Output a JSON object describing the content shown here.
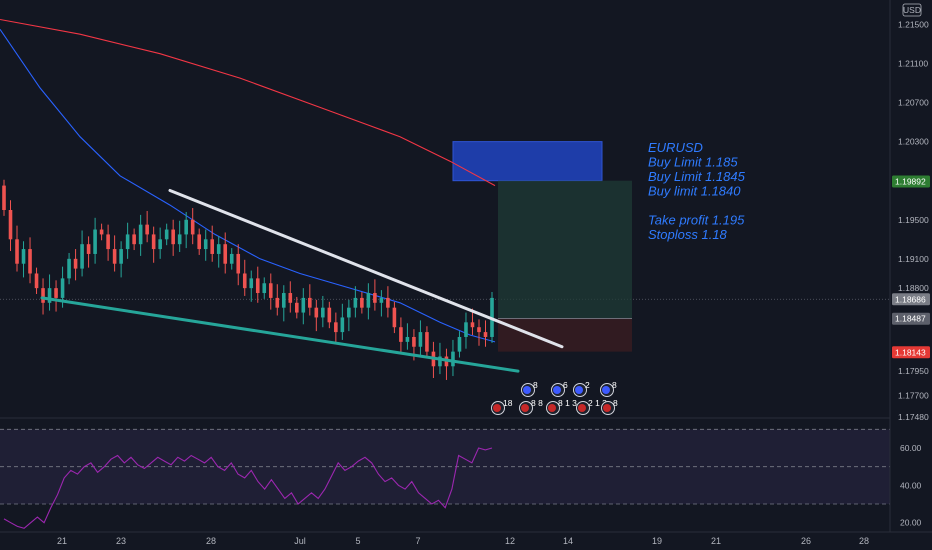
{
  "chart_data": {
    "type": "candlestick",
    "symbol": "EURUSD",
    "currency": "USD",
    "price_axis": {
      "range": [
        1.1745,
        1.2175
      ],
      "ticks": [
        "1.21500",
        "1.21100",
        "1.20700",
        "1.20300",
        "1.19500",
        "1.19100",
        "1.18800",
        "1.17950",
        "1.17700",
        "1.17480"
      ]
    },
    "price_labels": [
      {
        "value": 1.19892,
        "text": "1.19892",
        "color": "#2e7d32"
      },
      {
        "value": 1.18686,
        "text": "1.18686",
        "color": "#7a7d86"
      },
      {
        "value": 1.18487,
        "text": "1.18487",
        "color": "#5d606b"
      },
      {
        "value": 1.18143,
        "text": "1.18143",
        "color": "#e53935"
      }
    ],
    "current_price_line": 1.18686,
    "time_axis": {
      "ticks": [
        "21",
        "23",
        "28",
        "Jul",
        "5",
        "7",
        "12",
        "14",
        "19",
        "21",
        "26",
        "28"
      ]
    },
    "candles_o_c": [
      [
        1.1985,
        1.196
      ],
      [
        1.196,
        1.193
      ],
      [
        1.193,
        1.1905
      ],
      [
        1.1905,
        1.192
      ],
      [
        1.192,
        1.1895
      ],
      [
        1.1895,
        1.188
      ],
      [
        1.188,
        1.1865
      ],
      [
        1.1865,
        1.188
      ],
      [
        1.188,
        1.187
      ],
      [
        1.187,
        1.189
      ],
      [
        1.189,
        1.191
      ],
      [
        1.191,
        1.19
      ],
      [
        1.19,
        1.1925
      ],
      [
        1.1925,
        1.1915
      ],
      [
        1.1915,
        1.194
      ],
      [
        1.194,
        1.1935
      ],
      [
        1.1935,
        1.192
      ],
      [
        1.192,
        1.1905
      ],
      [
        1.1905,
        1.192
      ],
      [
        1.192,
        1.1935
      ],
      [
        1.1935,
        1.1925
      ],
      [
        1.1925,
        1.1945
      ],
      [
        1.1945,
        1.1935
      ],
      [
        1.1935,
        1.192
      ],
      [
        1.192,
        1.193
      ],
      [
        1.193,
        1.194
      ],
      [
        1.194,
        1.1925
      ],
      [
        1.1925,
        1.1935
      ],
      [
        1.1935,
        1.195
      ],
      [
        1.195,
        1.1935
      ],
      [
        1.1935,
        1.192
      ],
      [
        1.192,
        1.193
      ],
      [
        1.193,
        1.1915
      ],
      [
        1.1915,
        1.1925
      ],
      [
        1.1925,
        1.1905
      ],
      [
        1.1905,
        1.1915
      ],
      [
        1.1915,
        1.1895
      ],
      [
        1.1895,
        1.188
      ],
      [
        1.188,
        1.189
      ],
      [
        1.189,
        1.1875
      ],
      [
        1.1875,
        1.1885
      ],
      [
        1.1885,
        1.187
      ],
      [
        1.187,
        1.186
      ],
      [
        1.186,
        1.1875
      ],
      [
        1.1875,
        1.1865
      ],
      [
        1.1865,
        1.1855
      ],
      [
        1.1855,
        1.187
      ],
      [
        1.187,
        1.186
      ],
      [
        1.186,
        1.185
      ],
      [
        1.185,
        1.186
      ],
      [
        1.186,
        1.1845
      ],
      [
        1.1845,
        1.1835
      ],
      [
        1.1835,
        1.185
      ],
      [
        1.185,
        1.186
      ],
      [
        1.186,
        1.187
      ],
      [
        1.187,
        1.186
      ],
      [
        1.186,
        1.1875
      ],
      [
        1.1875,
        1.1865
      ],
      [
        1.1865,
        1.187
      ],
      [
        1.187,
        1.186
      ],
      [
        1.186,
        1.184
      ],
      [
        1.184,
        1.1825
      ],
      [
        1.1825,
        1.183
      ],
      [
        1.183,
        1.182
      ],
      [
        1.182,
        1.1835
      ],
      [
        1.1835,
        1.1815
      ],
      [
        1.1815,
        1.18
      ],
      [
        1.18,
        1.181
      ],
      [
        1.181,
        1.18
      ],
      [
        1.18,
        1.1815
      ],
      [
        1.1815,
        1.183
      ],
      [
        1.183,
        1.1845
      ],
      [
        1.1845,
        1.184
      ],
      [
        1.184,
        1.1835
      ],
      [
        1.1835,
        1.183
      ],
      [
        1.183,
        1.187
      ]
    ],
    "moving_averages": [
      {
        "color": "#f23645",
        "points": [
          [
            0,
            1.2155
          ],
          [
            80,
            1.214
          ],
          [
            160,
            1.212
          ],
          [
            240,
            1.2095
          ],
          [
            320,
            1.2065
          ],
          [
            400,
            1.2035
          ],
          [
            450,
            1.201
          ],
          [
            495,
            1.1985
          ]
        ]
      },
      {
        "color": "#2962ff",
        "points": [
          [
            0,
            1.2145
          ],
          [
            40,
            1.2085
          ],
          [
            80,
            1.2035
          ],
          [
            120,
            1.1995
          ],
          [
            170,
            1.1965
          ],
          [
            215,
            1.1935
          ],
          [
            260,
            1.191
          ],
          [
            300,
            1.1895
          ],
          [
            350,
            1.188
          ],
          [
            400,
            1.1865
          ],
          [
            440,
            1.1845
          ],
          [
            470,
            1.1832
          ],
          [
            495,
            1.1825
          ]
        ]
      }
    ],
    "trendlines": [
      {
        "color": "#e0e3eb",
        "from": [
          170,
          1.198
        ],
        "to": [
          562,
          1.182
        ]
      },
      {
        "color": "#26a69a",
        "from": [
          42,
          1.187
        ],
        "to": [
          518,
          1.1795
        ]
      }
    ],
    "zones": [
      {
        "kind": "buy_limit",
        "color": "#2041b8",
        "x": [
          453,
          602
        ],
        "price": [
          1.203,
          1.199
        ]
      },
      {
        "kind": "profit",
        "color": "#1f3b35",
        "x": [
          498,
          632
        ],
        "price": [
          1.199,
          1.1849
        ]
      },
      {
        "kind": "loss",
        "color": "#3c1d22",
        "x": [
          498,
          632
        ],
        "price": [
          1.1849,
          1.1815
        ]
      }
    ],
    "annotation_lines": [
      "EURUSD",
      "Buy Limit 1.185",
      "Buy Limit 1.1845",
      "Buy limit 1.1840",
      "",
      "Take profit  1.195",
      "Stoploss 1.18"
    ],
    "event_icons": [
      {
        "x": 528,
        "row": 1,
        "label": "8"
      },
      {
        "x": 558,
        "row": 1,
        "label": "6"
      },
      {
        "x": 580,
        "row": 1,
        "label": "2"
      },
      {
        "x": 607,
        "row": 1,
        "label": "8"
      },
      {
        "x": 498,
        "row": 2,
        "label": "18"
      },
      {
        "x": 526,
        "row": 2,
        "label": "8 8"
      },
      {
        "x": 553,
        "row": 2,
        "label": "8 1 3"
      },
      {
        "x": 583,
        "row": 2,
        "label": "2 1 3"
      },
      {
        "x": 608,
        "row": 2,
        "label": "8"
      }
    ],
    "rsi": {
      "color": "#9c27b0",
      "levels": [
        70,
        50,
        30
      ],
      "ticks": [
        "60.00",
        "40.00",
        "20.00"
      ],
      "range": [
        15,
        75
      ],
      "values": [
        22,
        20,
        18,
        17,
        20,
        23,
        20,
        28,
        35,
        44,
        48,
        46,
        50,
        52,
        47,
        50,
        54,
        56,
        52,
        55,
        51,
        49,
        52,
        55,
        53,
        51,
        55,
        53,
        56,
        54,
        52,
        55,
        50,
        48,
        52,
        46,
        44,
        48,
        42,
        38,
        43,
        38,
        33,
        36,
        30,
        33,
        36,
        33,
        38,
        45,
        52,
        48,
        50,
        53,
        55,
        52,
        46,
        42,
        44,
        40,
        38,
        42,
        36,
        33,
        30,
        32,
        28,
        38,
        56,
        54,
        52,
        60,
        59,
        60
      ]
    }
  }
}
